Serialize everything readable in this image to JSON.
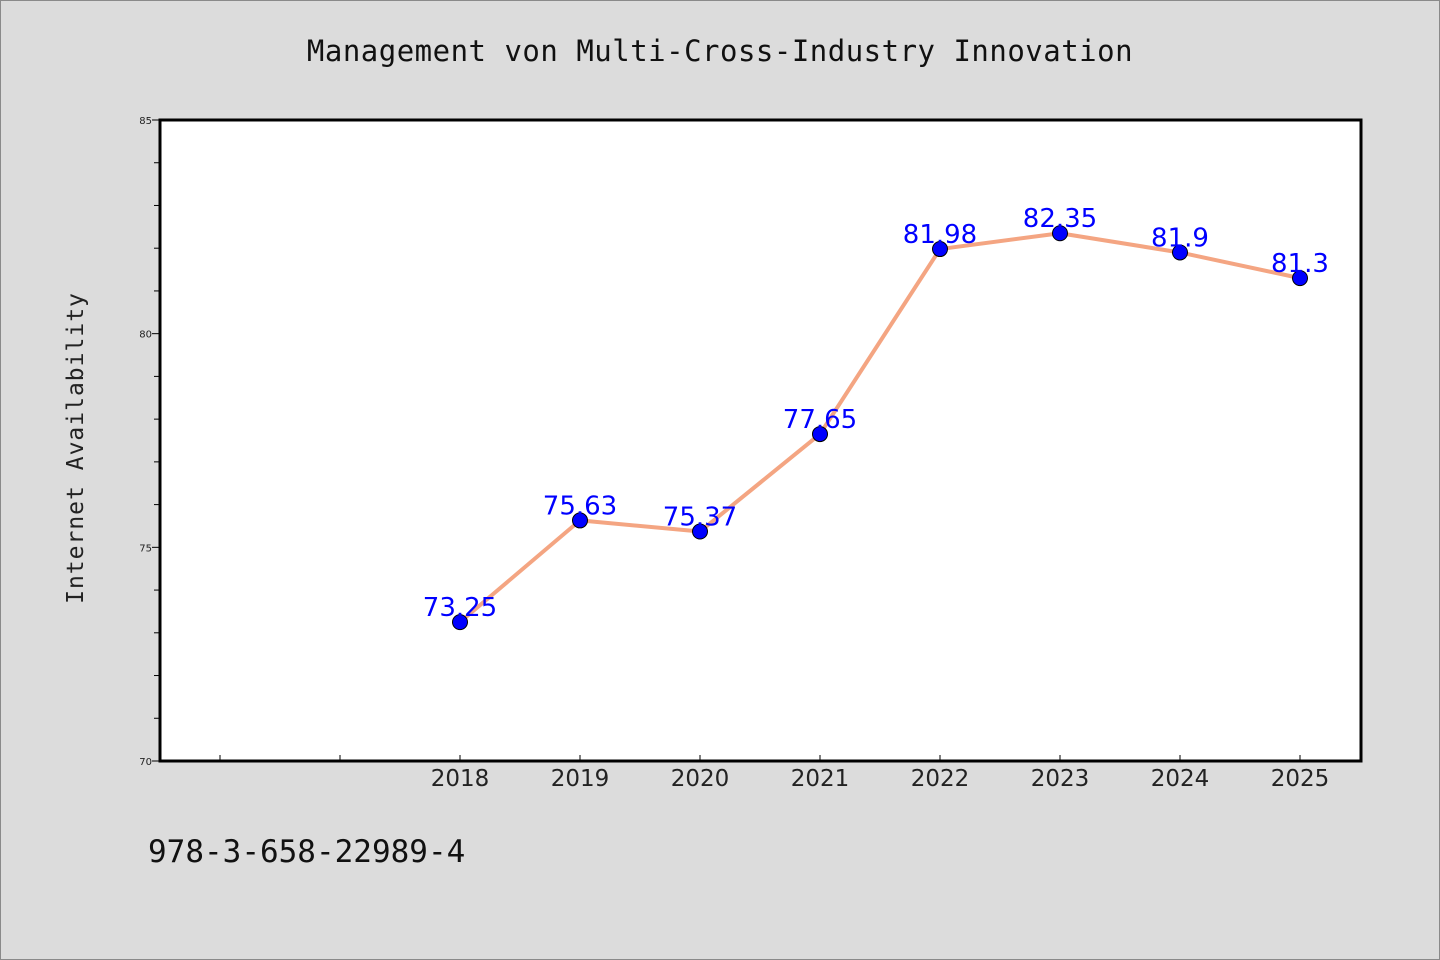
{
  "chart_data": {
    "type": "line",
    "title": "Management von Multi-Cross-Industry Innovation",
    "ylabel": "Internet Availability",
    "xlabel": "",
    "x": [
      "2018",
      "2019",
      "2020",
      "2021",
      "2022",
      "2023",
      "2024",
      "2025"
    ],
    "series": [
      {
        "values": [
          73.25,
          75.63,
          75.37,
          77.65,
          81.98,
          82.35,
          81.9,
          81.3
        ],
        "data_labels": [
          "73.25",
          "75.63",
          "75.37",
          "77.65",
          "81.98",
          "82.35",
          "81.9",
          "81.3"
        ]
      }
    ],
    "ylim": [
      70,
      85
    ],
    "y_ticks": [
      "70",
      "75",
      "80",
      "85"
    ],
    "grid": false,
    "legend": "none",
    "colors": {
      "line": "#f4a582",
      "marker": "#0000ff",
      "label": "#0000ff",
      "plot_background": "#ffffff",
      "figure_background": "#dcdcdc"
    }
  },
  "footnote": "978-3-658-22989-4"
}
